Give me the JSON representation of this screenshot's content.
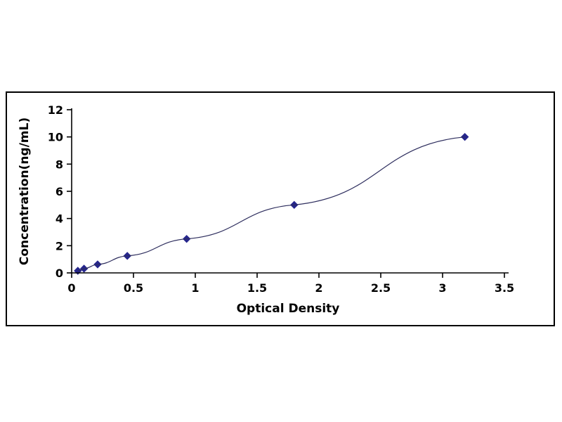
{
  "chart_data": {
    "type": "line",
    "title": "",
    "xlabel": "Optical Density",
    "ylabel": "Concentration(ng/mL)",
    "x": [
      0.05,
      0.1,
      0.21,
      0.45,
      0.93,
      1.8,
      3.18
    ],
    "y": [
      0.156,
      0.312,
      0.625,
      1.25,
      2.5,
      5,
      10
    ],
    "xlim": [
      0,
      3.5
    ],
    "ylim": [
      0,
      12
    ],
    "x_tick_values": [
      0,
      0.5,
      1,
      1.5,
      2,
      2.5,
      3,
      3.5
    ],
    "x_tick_labels": [
      "0",
      "0.5",
      "1",
      "1.5",
      "2",
      "2.5",
      "3",
      "3.5"
    ],
    "y_tick_values": [
      0,
      2,
      4,
      6,
      8,
      10,
      12
    ],
    "y_tick_labels": [
      "0",
      "2",
      "4",
      "6",
      "8",
      "10",
      "12"
    ],
    "grid": false,
    "legend_position": "none",
    "marker": "diamond",
    "colors": {
      "line": "#2e2e5e",
      "marker": "#26268c",
      "axis": "#000000",
      "text": "#000000",
      "frame_border": "#000000"
    }
  }
}
